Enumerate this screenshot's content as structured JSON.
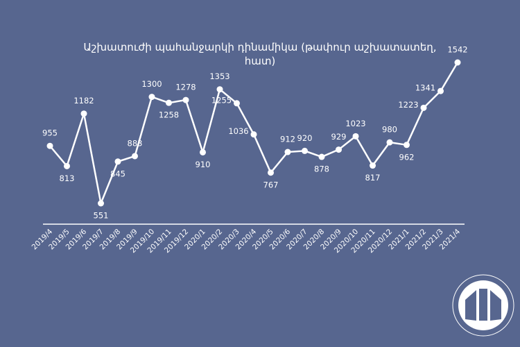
{
  "chart_data": {
    "type": "line",
    "title": "Աշխատուժի պահանջարկի դինամիկա (թափուր աշխատատեղ, հատ)",
    "categories": [
      "2019/4",
      "2019/5",
      "2019/6",
      "2019/7",
      "2019/8",
      "2019/9",
      "2019/10",
      "2019/11",
      "2019/12",
      "2020/1",
      "2020/2",
      "2020/3",
      "2020/4",
      "2020/5",
      "2020/6",
      "2020/7",
      "2020/8",
      "2020/9",
      "2020/10",
      "2020/11",
      "2020/12",
      "2021/1",
      "2021/2",
      "2021/3",
      "2021/4"
    ],
    "values": [
      955,
      813,
      1182,
      551,
      845,
      883,
      1300,
      1258,
      1278,
      910,
      1353,
      1255,
      1036,
      767,
      912,
      920,
      878,
      929,
      1023,
      817,
      980,
      962,
      1223,
      1341,
      1542
    ],
    "color": "#ffffff"
  }
}
